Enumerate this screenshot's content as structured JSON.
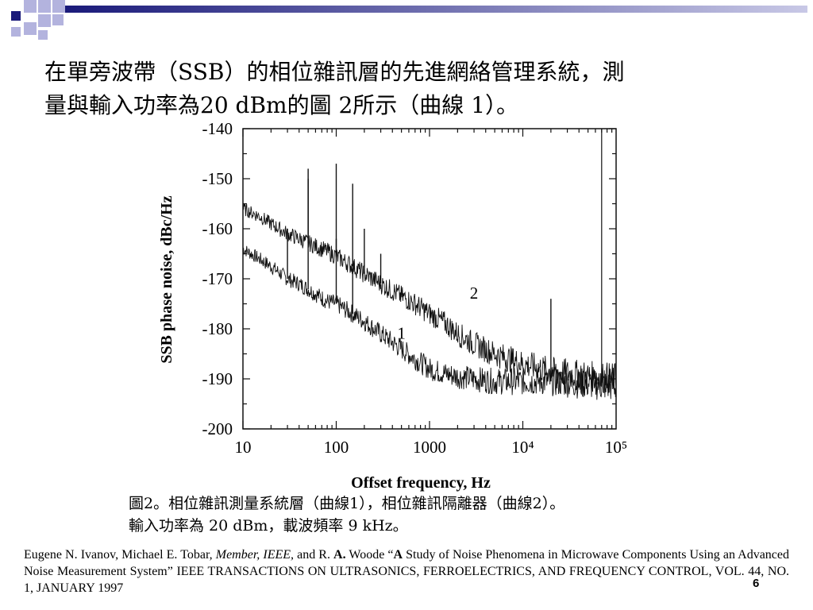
{
  "heading": {
    "line1": "在單旁波帶（SSB）的相位雜訊層的先進網絡管理系統，測",
    "line2": "量與輸入功率為20 dBm的圖 2所示（曲線 1）。"
  },
  "caption": {
    "line1": "圖2。相位雜訊測量系統層（曲線1），相位雜訊隔離器（曲線2）。",
    "line2": "輸入功率為 20 dBm，載波頻率 9 kHz。"
  },
  "reference": {
    "authors": "Eugene N. Ivanov, Michael E. Tobar,",
    "member": "Member, IEEE,",
    "and_r": "and R.",
    "a_initial": "A.",
    "woode": "Woode “",
    "a_title": "A",
    "rest": "Study of Noise Phenomena in Microwave Components Using an Advanced Noise Measurement System” IEEE TRANSACTIONS ON ULTRASONICS, FERROELECTRICS, AND FREQUENCY CONTROL, VOL. 44, NO. 1, JANUARY 1997"
  },
  "page_number": "6",
  "colors": {
    "decor_dark": "#1a1a7a",
    "decor_light": "#b3b3de",
    "line": "#111111"
  },
  "chart_data": {
    "type": "line",
    "xlabel": "Offset frequency, Hz",
    "ylabel": "SSB phase noise, dBc/Hz",
    "xscale": "log",
    "xlim": [
      10,
      100000
    ],
    "ylim": [
      -200,
      -140
    ],
    "x_tick_labels": [
      "10",
      "100",
      "1000",
      "10⁴",
      "10⁵"
    ],
    "y_ticks": [
      -140,
      -150,
      -160,
      -170,
      -180,
      -190,
      -200
    ],
    "grid": false,
    "legend": "inline labels",
    "series": [
      {
        "name": "1",
        "label_at": [
          500,
          -182
        ],
        "x": [
          10,
          15,
          20,
          30,
          40,
          60,
          80,
          100,
          150,
          200,
          300,
          500,
          700,
          1000,
          1500,
          2000,
          3000,
          5000,
          10000,
          20000,
          50000,
          100000
        ],
        "y": [
          -164,
          -166,
          -167.5,
          -170,
          -171,
          -173,
          -174.5,
          -175,
          -177,
          -178.5,
          -181,
          -184,
          -186,
          -188,
          -189,
          -189.5,
          -190,
          -190.5,
          -190.5,
          -190.5,
          -191,
          -191.5
        ],
        "spikes": [
          [
            30,
            -160
          ],
          [
            50,
            -150
          ],
          [
            100,
            -162
          ],
          [
            150,
            -168
          ],
          [
            200,
            -179
          ],
          [
            20000,
            -174
          ]
        ]
      },
      {
        "name": "2",
        "label_at": [
          3000,
          -174
        ],
        "x": [
          10,
          15,
          20,
          30,
          40,
          60,
          80,
          100,
          150,
          200,
          300,
          500,
          700,
          1000,
          1500,
          2000,
          3000,
          5000,
          10000,
          20000,
          50000,
          100000
        ],
        "y": [
          -156,
          -157.5,
          -159,
          -161,
          -162,
          -163.5,
          -164.5,
          -165.5,
          -167.5,
          -169,
          -171,
          -173.5,
          -175,
          -177,
          -179,
          -181,
          -183,
          -185,
          -187,
          -188.5,
          -189.5,
          -190
        ],
        "spikes": [
          [
            50,
            -148
          ],
          [
            100,
            -147
          ],
          [
            150,
            -151
          ],
          [
            200,
            -160
          ],
          [
            300,
            -165
          ]
        ]
      }
    ],
    "annotations": [
      "1",
      "2"
    ]
  }
}
